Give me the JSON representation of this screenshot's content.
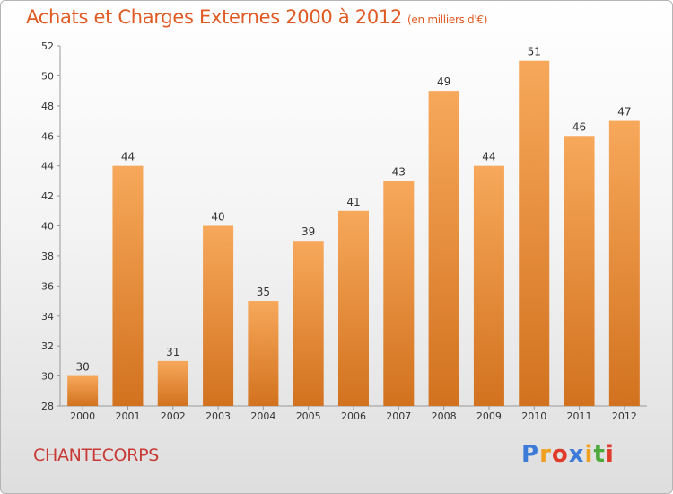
{
  "header": {
    "title": "Achats et Charges Externes 2000 à 2012",
    "subtitle": "(en milliers d'€)"
  },
  "footer": {
    "commune": "CHANTECORPS",
    "logo": [
      "P",
      "r",
      "o",
      "x",
      "i",
      "t",
      "i"
    ]
  },
  "colors": {
    "title": "#e05a23",
    "commune": "#c83a36",
    "bar_top": "#f7a85a",
    "bar_bottom": "#d2721f",
    "logo": [
      "#3d7bd8",
      "#f0a020",
      "#e03a2a",
      "#3d7bd8",
      "#f0a020",
      "#4caa3a",
      "#e03a2a"
    ]
  },
  "chart_data": {
    "type": "bar",
    "title": "Achats et Charges Externes 2000 à 2012",
    "subtitle": "(en milliers d'€)",
    "categories": [
      "2000",
      "2001",
      "2002",
      "2003",
      "2004",
      "2005",
      "2006",
      "2007",
      "2008",
      "2009",
      "2010",
      "2011",
      "2012"
    ],
    "values": [
      30,
      44,
      31,
      40,
      35,
      39,
      41,
      43,
      49,
      44,
      51,
      46,
      47
    ],
    "ylim": [
      28,
      52
    ],
    "yticks": [
      28,
      30,
      32,
      34,
      36,
      38,
      40,
      42,
      44,
      46,
      48,
      50,
      52
    ],
    "xlabel": "",
    "ylabel": "",
    "grid": false,
    "legend": "none"
  }
}
